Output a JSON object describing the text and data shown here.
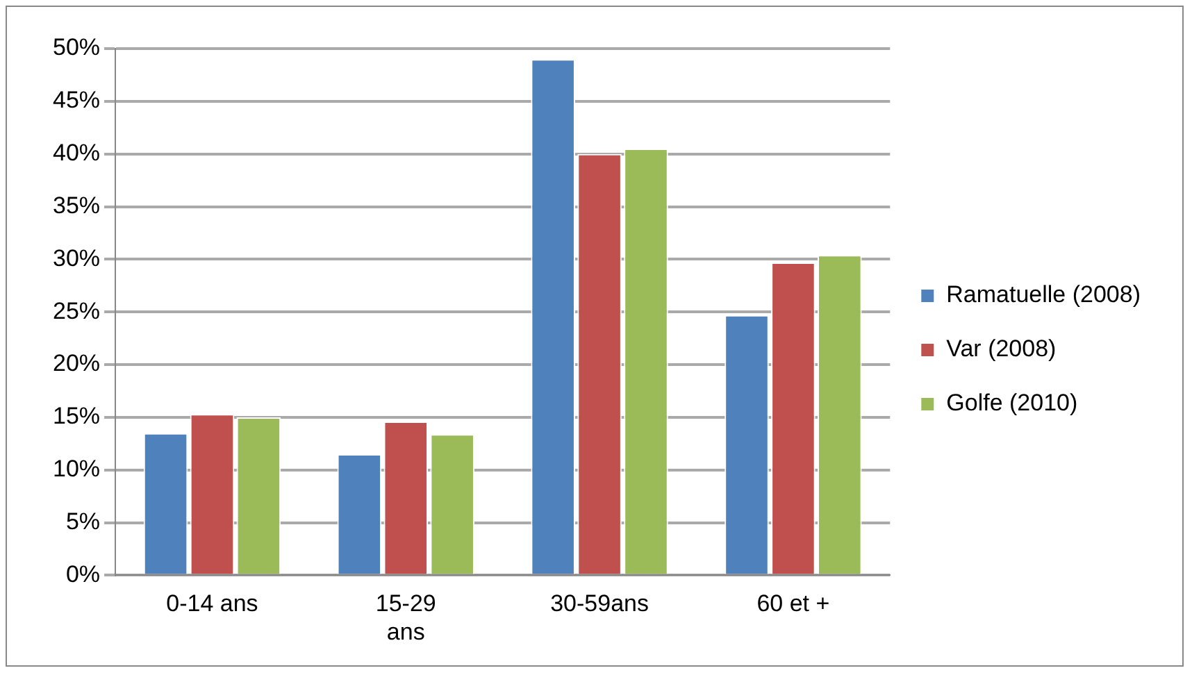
{
  "chart_data": {
    "type": "bar",
    "categories": [
      "0-14 ans",
      "15-29 ans",
      "30-59ans",
      "60 et +"
    ],
    "series": [
      {
        "name": "Ramatuelle (2008)",
        "color": "#4f81bd",
        "values": [
          13.5,
          11.5,
          49,
          24.7
        ]
      },
      {
        "name": "Var (2008)",
        "color": "#c0504d",
        "values": [
          15.3,
          14.6,
          40,
          29.7
        ]
      },
      {
        "name": "Golfe (2010)",
        "color": "#9bbb59",
        "values": [
          15,
          13.4,
          40.5,
          30.4
        ]
      }
    ],
    "ylim": [
      0,
      50
    ],
    "yticks": [
      {
        "value": 0,
        "label": "0%"
      },
      {
        "value": 5,
        "label": "5%"
      },
      {
        "value": 10,
        "label": "10%"
      },
      {
        "value": 15,
        "label": "15%"
      },
      {
        "value": 20,
        "label": "20%"
      },
      {
        "value": 25,
        "label": "25%"
      },
      {
        "value": 30,
        "label": "30%"
      },
      {
        "value": 35,
        "label": "35%"
      },
      {
        "value": 40,
        "label": "40%"
      },
      {
        "value": 45,
        "label": "45%"
      },
      {
        "value": 50,
        "label": "50%"
      }
    ],
    "grid": "y",
    "legend": "right"
  }
}
